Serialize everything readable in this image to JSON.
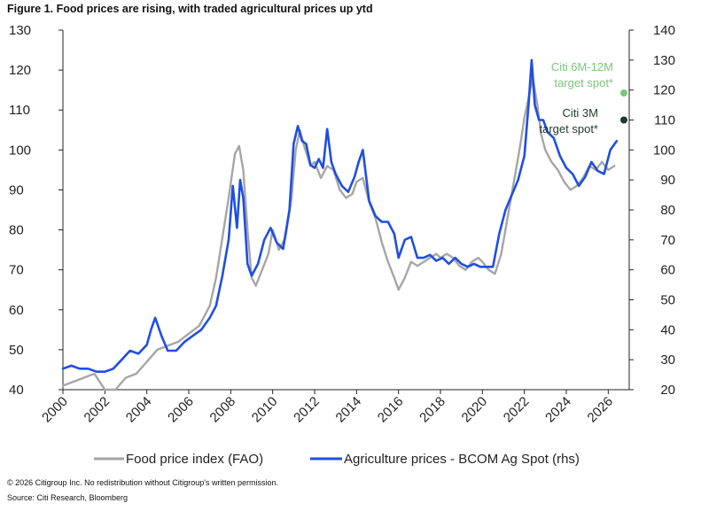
{
  "figure": {
    "title": "Figure 1. Food prices are rising, with traded agricultural prices up ytd",
    "copyright": "© 2026 Citigroup Inc. No redistribution without Citigroup's written permission.",
    "source": "Source: Citi Research, Bloomberg"
  },
  "chart_data": {
    "type": "line",
    "x_ticks": [
      "2000",
      "2002",
      "2004",
      "2006",
      "2008",
      "2010",
      "2012",
      "2014",
      "2016",
      "2018",
      "2020",
      "2022",
      "2024",
      "2026"
    ],
    "xlim": [
      2000,
      2027
    ],
    "y_left": {
      "ylim": [
        40,
        130
      ],
      "ticks": [
        40,
        50,
        60,
        70,
        80,
        90,
        100,
        110,
        120,
        130
      ]
    },
    "y_right": {
      "ylim": [
        20,
        140
      ],
      "ticks": [
        20,
        30,
        40,
        50,
        60,
        70,
        80,
        90,
        100,
        110,
        120,
        130,
        140
      ]
    },
    "grid": false,
    "legend_placement": "bottom",
    "series": [
      {
        "name": "Food price index (FAO)",
        "axis": "left",
        "color": "#a6a6a6",
        "x": [
          2000.0,
          2000.5,
          2001.0,
          2001.5,
          2002.0,
          2002.5,
          2003.0,
          2003.5,
          2004.0,
          2004.5,
          2005.0,
          2005.5,
          2006.0,
          2006.5,
          2007.0,
          2007.3,
          2007.6,
          2007.9,
          2008.2,
          2008.4,
          2008.6,
          2008.8,
          2009.0,
          2009.2,
          2009.5,
          2009.8,
          2010.0,
          2010.3,
          2010.6,
          2010.9,
          2011.1,
          2011.3,
          2011.5,
          2011.8,
          2012.0,
          2012.3,
          2012.6,
          2012.9,
          2013.2,
          2013.5,
          2013.8,
          2014.0,
          2014.3,
          2014.6,
          2014.9,
          2015.2,
          2015.5,
          2015.8,
          2016.0,
          2016.3,
          2016.6,
          2016.9,
          2017.2,
          2017.5,
          2017.8,
          2018.0,
          2018.3,
          2018.6,
          2018.9,
          2019.2,
          2019.5,
          2019.8,
          2020.0,
          2020.3,
          2020.6,
          2020.9,
          2021.2,
          2021.5,
          2021.8,
          2022.0,
          2022.2,
          2022.4,
          2022.6,
          2022.8,
          2023.0,
          2023.3,
          2023.6,
          2023.9,
          2024.2,
          2024.5,
          2024.8,
          2025.1,
          2025.4,
          2025.7,
          2026.0,
          2026.3
        ],
        "values": [
          41,
          42,
          43,
          44,
          40,
          40,
          43,
          44,
          47,
          50,
          51,
          52,
          54,
          56,
          61,
          68,
          78,
          88,
          99,
          101,
          95,
          80,
          68,
          66,
          70,
          74,
          80,
          75,
          78,
          88,
          100,
          105,
          101,
          96,
          97,
          93,
          96,
          95,
          90,
          88,
          89,
          92,
          93,
          87,
          83,
          77,
          72,
          68,
          65,
          68,
          72,
          71,
          72,
          73,
          74,
          73,
          74,
          73,
          71,
          70,
          72,
          73,
          72,
          70,
          69,
          74,
          83,
          92,
          101,
          108,
          113,
          118,
          112,
          104,
          100,
          97,
          95,
          92,
          90,
          91,
          93,
          96,
          95,
          97,
          95,
          96
        ]
      },
      {
        "name": "Agriculture prices - BCOM Ag Spot (rhs)",
        "axis": "right",
        "color": "#1f4fe0",
        "x": [
          2000.0,
          2000.4,
          2000.8,
          2001.2,
          2001.6,
          2002.0,
          2002.4,
          2002.8,
          2003.2,
          2003.6,
          2004.0,
          2004.2,
          2004.4,
          2004.7,
          2005.0,
          2005.4,
          2005.8,
          2006.2,
          2006.6,
          2007.0,
          2007.3,
          2007.6,
          2007.9,
          2008.1,
          2008.3,
          2008.45,
          2008.6,
          2008.8,
          2009.0,
          2009.3,
          2009.6,
          2009.9,
          2010.2,
          2010.5,
          2010.8,
          2011.0,
          2011.2,
          2011.4,
          2011.6,
          2011.8,
          2012.0,
          2012.2,
          2012.4,
          2012.6,
          2012.8,
          2013.0,
          2013.3,
          2013.6,
          2013.9,
          2014.1,
          2014.3,
          2014.6,
          2014.9,
          2015.2,
          2015.5,
          2015.8,
          2016.0,
          2016.3,
          2016.6,
          2016.9,
          2017.2,
          2017.5,
          2017.8,
          2018.1,
          2018.4,
          2018.7,
          2019.0,
          2019.3,
          2019.6,
          2019.9,
          2020.2,
          2020.5,
          2020.8,
          2021.1,
          2021.4,
          2021.7,
          2022.0,
          2022.2,
          2022.35,
          2022.5,
          2022.7,
          2022.9,
          2023.1,
          2023.4,
          2023.7,
          2024.0,
          2024.3,
          2024.6,
          2024.9,
          2025.2,
          2025.5,
          2025.8,
          2026.1,
          2026.4
        ],
        "values": [
          27,
          28,
          27,
          27,
          26,
          26,
          27,
          30,
          33,
          32,
          35,
          40,
          44,
          38,
          33,
          33,
          36,
          38,
          40,
          44,
          48,
          58,
          70,
          88,
          74,
          90,
          84,
          62,
          58,
          62,
          70,
          74,
          69,
          67,
          80,
          102,
          108,
          103,
          102,
          95,
          94,
          97,
          94,
          107,
          96,
          92,
          88,
          86,
          91,
          96,
          100,
          83,
          78,
          76,
          76,
          72,
          64,
          70,
          71,
          64,
          64,
          65,
          63,
          64,
          62,
          64,
          62,
          61,
          62,
          61,
          61,
          61,
          72,
          80,
          85,
          90,
          98,
          115,
          130,
          115,
          110,
          110,
          106,
          104,
          98,
          94,
          92,
          88,
          91,
          96,
          93,
          92,
          100,
          103
        ]
      }
    ],
    "annotations": [
      {
        "text_line1": "Citi 6M-12M",
        "text_line2": "target spot*",
        "value": 119,
        "color": "#7cc47a"
      },
      {
        "text_line1": "Citi 3M",
        "text_line2": "target spot*",
        "value": 110,
        "color": "#1d3b2a"
      }
    ]
  }
}
